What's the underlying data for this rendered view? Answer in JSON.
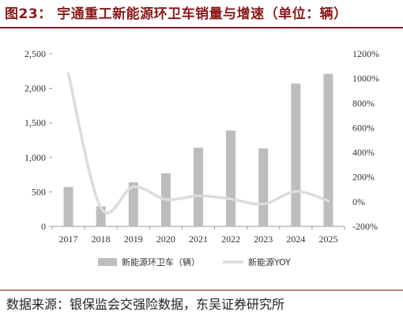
{
  "header": {
    "title": "图23：  宇通重工新能源环卫车销量与增速（单位：辆）"
  },
  "footer": {
    "source": "数据来源：银保监会交强险数据，东吴证券研究所"
  },
  "chart_data": {
    "type": "bar",
    "categories": [
      "2017",
      "2018",
      "2019",
      "2020",
      "2021",
      "2022",
      "2023",
      "2024",
      "2025"
    ],
    "series": [
      {
        "name": "新能源环卫车（辆）",
        "type": "bar",
        "axis": "left",
        "values": [
          570,
          290,
          640,
          770,
          1140,
          1390,
          1130,
          2070,
          2210
        ]
      },
      {
        "name": "新能源YOY",
        "type": "line",
        "axis": "right",
        "values": [
          1040,
          -49,
          121,
          20,
          48,
          22,
          -19,
          83,
          7
        ]
      }
    ],
    "y_left": {
      "range": [
        0,
        2500
      ],
      "ticks": [
        "0",
        "500",
        "1,000",
        "1,500",
        "2,000",
        "2,500"
      ]
    },
    "y_right": {
      "range": [
        -200,
        1200
      ],
      "ticks": [
        "-200%",
        "0%",
        "200%",
        "400%",
        "600%",
        "800%",
        "1000%",
        "1200%"
      ]
    },
    "grid": false,
    "legend_position": "bottom",
    "colors": {
      "bar": "#bdbdbd",
      "line": "#dcdcdc",
      "title": "#8b1a1a"
    }
  }
}
